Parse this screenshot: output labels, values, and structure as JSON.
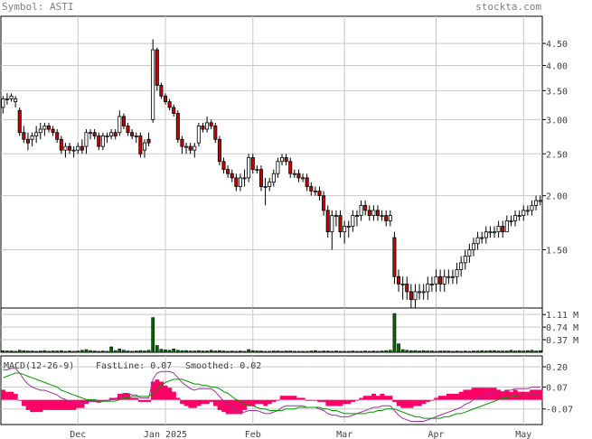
{
  "header": {
    "symbol_label": "Symbol: ASTI",
    "site": "stockta.com"
  },
  "colors": {
    "up": "#ffffff",
    "down": "#cc0000",
    "volume": "#006400",
    "macd_hist": "#ff0066",
    "fast_line": "#993399",
    "smoothed_line": "#009900",
    "grid": "#c8c8c8"
  },
  "chart_data": [
    {
      "type": "candlestick",
      "panel": "price",
      "y_scale": "log",
      "ylim": [
        1.1,
        5.2
      ],
      "yticks": [
        4.5,
        4.0,
        3.5,
        3.0,
        2.5,
        2.0,
        1.5
      ],
      "ytick_labels": [
        "4.50",
        "4.00",
        "3.50",
        "3.00",
        "2.50",
        "2.00",
        "1.50"
      ],
      "x_labels": [
        "Dec",
        "Jan 2025",
        "Feb",
        "Mar",
        "Apr",
        "May"
      ],
      "x_label_positions": [
        18,
        39,
        60,
        82,
        104,
        125
      ],
      "n_bars": 130,
      "close": [
        3.35,
        3.35,
        3.4,
        3.35,
        2.8,
        2.7,
        2.65,
        2.75,
        2.8,
        2.85,
        2.9,
        2.85,
        2.8,
        2.7,
        2.55,
        2.6,
        2.55,
        2.55,
        2.6,
        2.55,
        2.8,
        2.8,
        2.75,
        2.6,
        2.75,
        2.75,
        2.8,
        2.75,
        3.05,
        2.9,
        2.8,
        2.75,
        2.75,
        2.5,
        2.65,
        2.65,
        4.35,
        3.6,
        3.4,
        3.3,
        3.2,
        3.1,
        2.7,
        2.6,
        2.6,
        2.55,
        2.6,
        2.9,
        2.85,
        2.95,
        2.9,
        2.7,
        2.4,
        2.3,
        2.25,
        2.2,
        2.1,
        2.2,
        2.2,
        2.45,
        2.3,
        2.3,
        2.1,
        2.1,
        2.15,
        2.25,
        2.4,
        2.45,
        2.4,
        2.25,
        2.25,
        2.2,
        2.2,
        2.1,
        2.05,
        2.05,
        2.0,
        1.85,
        1.65,
        1.8,
        1.8,
        1.65,
        1.7,
        1.7,
        1.8,
        1.8,
        1.9,
        1.85,
        1.8,
        1.85,
        1.8,
        1.8,
        1.75,
        1.8,
        1.3,
        1.25,
        1.25,
        1.2,
        1.15,
        1.2,
        1.2,
        1.2,
        1.25,
        1.25,
        1.3,
        1.25,
        1.3,
        1.3,
        1.3,
        1.35,
        1.4,
        1.45,
        1.5,
        1.55,
        1.6,
        1.6,
        1.65,
        1.65,
        1.65,
        1.7,
        1.65,
        1.75,
        1.75,
        1.8,
        1.8,
        1.85,
        1.85,
        1.9,
        1.95,
        1.95
      ],
      "open": [
        3.2,
        3.35,
        3.35,
        3.3,
        3.15,
        2.8,
        2.7,
        2.7,
        2.75,
        2.8,
        2.85,
        2.9,
        2.85,
        2.8,
        2.7,
        2.55,
        2.6,
        2.55,
        2.55,
        2.6,
        2.6,
        2.8,
        2.8,
        2.75,
        2.6,
        2.75,
        2.75,
        2.8,
        2.8,
        3.05,
        2.9,
        2.8,
        2.75,
        2.75,
        2.55,
        2.7,
        3.0,
        4.35,
        3.6,
        3.4,
        3.3,
        3.2,
        3.1,
        2.7,
        2.6,
        2.6,
        2.55,
        2.65,
        2.9,
        2.85,
        2.95,
        2.9,
        2.7,
        2.4,
        2.3,
        2.25,
        2.2,
        2.1,
        2.2,
        2.2,
        2.45,
        2.3,
        2.3,
        2.1,
        2.1,
        2.15,
        2.25,
        2.4,
        2.45,
        2.4,
        2.25,
        2.25,
        2.2,
        2.2,
        2.1,
        2.05,
        2.05,
        2.0,
        1.85,
        1.65,
        1.8,
        1.8,
        1.65,
        1.7,
        1.7,
        1.8,
        1.8,
        1.9,
        1.85,
        1.8,
        1.85,
        1.8,
        1.8,
        1.75,
        1.6,
        1.3,
        1.25,
        1.25,
        1.2,
        1.15,
        1.2,
        1.2,
        1.2,
        1.25,
        1.25,
        1.3,
        1.25,
        1.3,
        1.3,
        1.3,
        1.35,
        1.4,
        1.45,
        1.5,
        1.55,
        1.6,
        1.6,
        1.65,
        1.65,
        1.65,
        1.7,
        1.65,
        1.75,
        1.75,
        1.8,
        1.8,
        1.85,
        1.85,
        1.9,
        1.95
      ],
      "high": [
        3.4,
        3.45,
        3.45,
        3.4,
        3.2,
        2.9,
        2.8,
        2.8,
        2.9,
        2.95,
        2.95,
        2.95,
        2.9,
        2.85,
        2.75,
        2.65,
        2.65,
        2.6,
        2.65,
        2.7,
        2.85,
        2.85,
        2.85,
        2.8,
        2.8,
        2.8,
        2.85,
        2.85,
        3.15,
        3.1,
        2.95,
        2.85,
        2.8,
        2.8,
        2.7,
        2.8,
        4.6,
        4.4,
        3.65,
        3.45,
        3.35,
        3.25,
        3.15,
        2.75,
        2.65,
        2.65,
        2.65,
        2.95,
        2.95,
        3.05,
        3.0,
        2.95,
        2.75,
        2.45,
        2.35,
        2.3,
        2.25,
        2.25,
        2.3,
        2.5,
        2.5,
        2.35,
        2.35,
        2.2,
        2.2,
        2.3,
        2.45,
        2.5,
        2.5,
        2.45,
        2.3,
        2.3,
        2.25,
        2.25,
        2.15,
        2.1,
        2.1,
        2.05,
        1.9,
        1.85,
        1.85,
        1.85,
        1.75,
        1.75,
        1.85,
        1.85,
        1.95,
        1.95,
        1.9,
        1.9,
        1.9,
        1.85,
        1.85,
        1.85,
        1.65,
        1.35,
        1.3,
        1.3,
        1.25,
        1.25,
        1.25,
        1.25,
        1.3,
        1.3,
        1.35,
        1.35,
        1.35,
        1.35,
        1.35,
        1.4,
        1.45,
        1.5,
        1.55,
        1.6,
        1.65,
        1.65,
        1.7,
        1.7,
        1.7,
        1.75,
        1.75,
        1.8,
        1.8,
        1.85,
        1.85,
        1.9,
        1.9,
        1.95,
        2.0,
        2.0
      ],
      "low": [
        3.1,
        3.25,
        3.3,
        3.2,
        2.75,
        2.65,
        2.55,
        2.6,
        2.65,
        2.7,
        2.75,
        2.8,
        2.75,
        2.65,
        2.5,
        2.45,
        2.5,
        2.45,
        2.5,
        2.5,
        2.5,
        2.7,
        2.7,
        2.55,
        2.55,
        2.65,
        2.7,
        2.7,
        2.75,
        2.85,
        2.75,
        2.7,
        2.65,
        2.45,
        2.45,
        2.6,
        2.95,
        3.5,
        3.35,
        3.25,
        3.15,
        3.05,
        2.65,
        2.5,
        2.5,
        2.5,
        2.45,
        2.6,
        2.8,
        2.8,
        2.85,
        2.65,
        2.35,
        2.25,
        2.2,
        2.15,
        2.05,
        2.05,
        2.1,
        2.15,
        2.25,
        2.25,
        2.05,
        1.9,
        2.05,
        2.1,
        2.2,
        2.35,
        2.35,
        2.2,
        2.2,
        2.15,
        2.15,
        2.05,
        2.0,
        2.0,
        1.95,
        1.8,
        1.6,
        1.5,
        1.7,
        1.6,
        1.55,
        1.6,
        1.65,
        1.7,
        1.75,
        1.8,
        1.75,
        1.75,
        1.75,
        1.75,
        1.7,
        1.7,
        1.25,
        1.2,
        1.15,
        1.15,
        1.1,
        1.1,
        1.15,
        1.15,
        1.15,
        1.2,
        1.2,
        1.2,
        1.2,
        1.25,
        1.25,
        1.25,
        1.3,
        1.35,
        1.4,
        1.45,
        1.5,
        1.55,
        1.55,
        1.6,
        1.6,
        1.6,
        1.6,
        1.65,
        1.7,
        1.7,
        1.75,
        1.75,
        1.8,
        1.8,
        1.85,
        1.9
      ]
    },
    {
      "type": "bar",
      "panel": "volume",
      "ylim": [
        0,
        1.3
      ],
      "yticks": [
        1.11,
        0.74,
        0.37
      ],
      "ytick_labels": [
        "1.11 M",
        "0.74 M",
        "0.37 M"
      ],
      "values": [
        0.05,
        0.04,
        0.04,
        0.03,
        0.06,
        0.05,
        0.04,
        0.04,
        0.03,
        0.04,
        0.05,
        0.03,
        0.04,
        0.04,
        0.05,
        0.03,
        0.04,
        0.03,
        0.04,
        0.06,
        0.08,
        0.05,
        0.04,
        0.03,
        0.04,
        0.03,
        0.16,
        0.05,
        0.1,
        0.06,
        0.04,
        0.03,
        0.04,
        0.05,
        0.04,
        0.06,
        1.02,
        0.2,
        0.09,
        0.07,
        0.06,
        0.1,
        0.06,
        0.05,
        0.05,
        0.04,
        0.04,
        0.05,
        0.04,
        0.04,
        0.06,
        0.04,
        0.05,
        0.04,
        0.03,
        0.04,
        0.03,
        0.04,
        0.03,
        0.08,
        0.05,
        0.04,
        0.04,
        0.03,
        0.03,
        0.04,
        0.04,
        0.03,
        0.04,
        0.04,
        0.03,
        0.03,
        0.03,
        0.03,
        0.04,
        0.05,
        0.03,
        0.04,
        0.04,
        0.03,
        0.04,
        0.03,
        0.03,
        0.03,
        0.04,
        0.03,
        0.03,
        0.04,
        0.03,
        0.04,
        0.03,
        0.04,
        0.05,
        0.06,
        1.14,
        0.25,
        0.08,
        0.06,
        0.05,
        0.05,
        0.04,
        0.05,
        0.04,
        0.04,
        0.03,
        0.04,
        0.04,
        0.04,
        0.03,
        0.04,
        0.03,
        0.04,
        0.03,
        0.04,
        0.04,
        0.05,
        0.04,
        0.05,
        0.05,
        0.04,
        0.04,
        0.04,
        0.06,
        0.04,
        0.05,
        0.04,
        0.05,
        0.06,
        0.04,
        0.05
      ]
    },
    {
      "type": "line",
      "panel": "macd",
      "title": "MACD(12-26-9)",
      "ylim": [
        -0.17,
        0.27
      ],
      "yticks": [
        0.2,
        0.07,
        -0.07
      ],
      "ytick_labels": [
        "0.20",
        "0.07",
        "-0.07"
      ],
      "series": [
        {
          "name": "FastLine: 0.07",
          "color": "#993399",
          "values": [
            0.18,
            0.18,
            0.19,
            0.19,
            0.16,
            0.12,
            0.09,
            0.07,
            0.06,
            0.05,
            0.05,
            0.04,
            0.03,
            0.02,
            0.0,
            -0.01,
            -0.02,
            -0.03,
            -0.03,
            -0.04,
            -0.03,
            -0.02,
            -0.02,
            -0.03,
            -0.02,
            -0.02,
            -0.01,
            -0.01,
            0.02,
            0.03,
            0.03,
            0.02,
            0.02,
            0.0,
            0.0,
            0.0,
            0.12,
            0.16,
            0.17,
            0.17,
            0.17,
            0.16,
            0.13,
            0.1,
            0.08,
            0.06,
            0.05,
            0.06,
            0.06,
            0.06,
            0.06,
            0.04,
            0.01,
            -0.02,
            -0.04,
            -0.06,
            -0.08,
            -0.09,
            -0.09,
            -0.08,
            -0.08,
            -0.08,
            -0.09,
            -0.1,
            -0.1,
            -0.09,
            -0.08,
            -0.06,
            -0.05,
            -0.05,
            -0.05,
            -0.05,
            -0.05,
            -0.06,
            -0.06,
            -0.06,
            -0.07,
            -0.08,
            -0.1,
            -0.11,
            -0.11,
            -0.12,
            -0.12,
            -0.12,
            -0.11,
            -0.1,
            -0.09,
            -0.08,
            -0.07,
            -0.06,
            -0.06,
            -0.05,
            -0.05,
            -0.05,
            -0.08,
            -0.11,
            -0.13,
            -0.14,
            -0.15,
            -0.15,
            -0.15,
            -0.15,
            -0.14,
            -0.13,
            -0.12,
            -0.11,
            -0.1,
            -0.09,
            -0.08,
            -0.07,
            -0.06,
            -0.04,
            -0.03,
            -0.01,
            0.0,
            0.01,
            0.02,
            0.03,
            0.04,
            0.04,
            0.04,
            0.05,
            0.05,
            0.06,
            0.06,
            0.06,
            0.06,
            0.07,
            0.07,
            0.07
          ]
        },
        {
          "name": "Smoothed: 0.02",
          "color": "#009900",
          "values": [
            0.13,
            0.14,
            0.15,
            0.16,
            0.16,
            0.15,
            0.14,
            0.13,
            0.12,
            0.11,
            0.1,
            0.09,
            0.08,
            0.07,
            0.05,
            0.04,
            0.03,
            0.02,
            0.01,
            0.0,
            -0.01,
            -0.01,
            -0.01,
            -0.02,
            -0.02,
            -0.02,
            -0.02,
            -0.02,
            -0.01,
            0.0,
            0.0,
            0.01,
            0.01,
            0.01,
            0.01,
            0.01,
            0.03,
            0.06,
            0.08,
            0.1,
            0.11,
            0.12,
            0.12,
            0.12,
            0.11,
            0.1,
            0.09,
            0.09,
            0.08,
            0.08,
            0.07,
            0.07,
            0.06,
            0.04,
            0.03,
            0.01,
            -0.01,
            -0.02,
            -0.04,
            -0.05,
            -0.05,
            -0.06,
            -0.07,
            -0.07,
            -0.08,
            -0.08,
            -0.08,
            -0.08,
            -0.07,
            -0.07,
            -0.07,
            -0.06,
            -0.06,
            -0.06,
            -0.06,
            -0.06,
            -0.06,
            -0.07,
            -0.07,
            -0.08,
            -0.08,
            -0.09,
            -0.1,
            -0.1,
            -0.1,
            -0.1,
            -0.1,
            -0.1,
            -0.09,
            -0.09,
            -0.08,
            -0.08,
            -0.07,
            -0.07,
            -0.07,
            -0.08,
            -0.09,
            -0.1,
            -0.11,
            -0.12,
            -0.12,
            -0.13,
            -0.13,
            -0.13,
            -0.13,
            -0.13,
            -0.12,
            -0.12,
            -0.11,
            -0.1,
            -0.1,
            -0.09,
            -0.08,
            -0.07,
            -0.06,
            -0.05,
            -0.04,
            -0.03,
            -0.02,
            -0.01,
            0.0,
            0.0,
            0.01,
            0.01,
            0.02,
            0.02,
            0.02,
            0.02,
            0.02,
            0.02
          ]
        }
      ]
    }
  ]
}
